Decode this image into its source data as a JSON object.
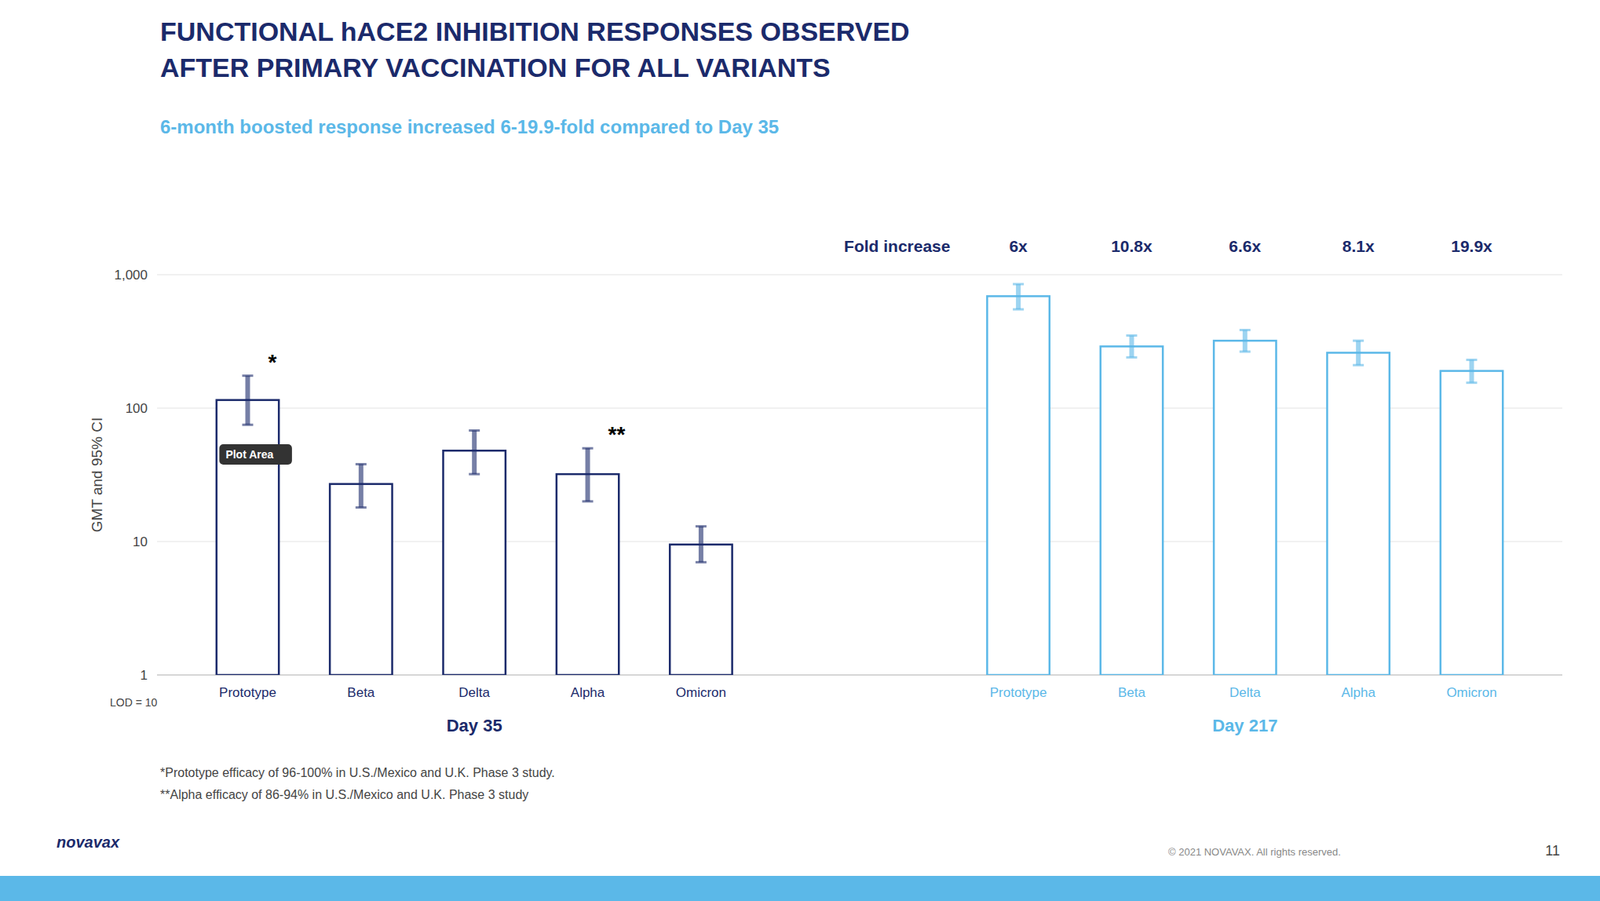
{
  "chart_data": {
    "type": "bar",
    "title": [
      "FUNCTIONAL hACE2 INHIBITION RESPONSES OBSERVED",
      "AFTER PRIMARY VACCINATION FOR ALL VARIANTS"
    ],
    "subtitle": "6-month boosted response increased 6-19.9-fold compared to Day 35",
    "y_label": "GMT and 95% CI",
    "categories": [
      "Prototype",
      "Beta",
      "Delta",
      "Alpha",
      "Omicron"
    ],
    "series": [
      {
        "name": "Day 35",
        "color": "#1B2A6B",
        "values": [
          115,
          27,
          48,
          32,
          9.5
        ],
        "ci_low": [
          75,
          18,
          32,
          20,
          7
        ],
        "ci_high": [
          175,
          38,
          68,
          50,
          13
        ]
      },
      {
        "name": "Day 217",
        "color": "#5BB8E8",
        "values": [
          690,
          290,
          320,
          260,
          190
        ],
        "ci_low": [
          550,
          240,
          265,
          210,
          155
        ],
        "ci_high": [
          850,
          350,
          385,
          320,
          230
        ]
      }
    ],
    "log": "y",
    "ylim": [
      1,
      1000
    ],
    "yticks": [
      1,
      10,
      100,
      {
        "value": 1000,
        "label": "1,000"
      }
    ],
    "grid": true,
    "fold_increase": {
      "label": "Fold increase",
      "values": [
        "6x",
        "10.8x",
        "6.6x",
        "8.1x",
        "19.9x"
      ]
    },
    "annotations": [
      {
        "text": "*",
        "series": "Day 35",
        "category": "Prototype"
      },
      {
        "text": "**",
        "series": "Day 35",
        "category": "Alpha"
      },
      {
        "text": "Plot Area",
        "series": "Day 35",
        "category": "Prototype",
        "y": 45
      },
      {
        "text": "LOD = 10"
      }
    ],
    "footnotes": [
      "*Prototype efficacy of 96-100% in U.S./Mexico and U.K. Phase 3 study.",
      "**Alpha efficacy of 86-94% in U.S./Mexico and U.K. Phase 3 study"
    ],
    "copyright": "© 2021 NOVAVAX. All rights reserved.",
    "page_number": "11",
    "logo": "novavax"
  }
}
